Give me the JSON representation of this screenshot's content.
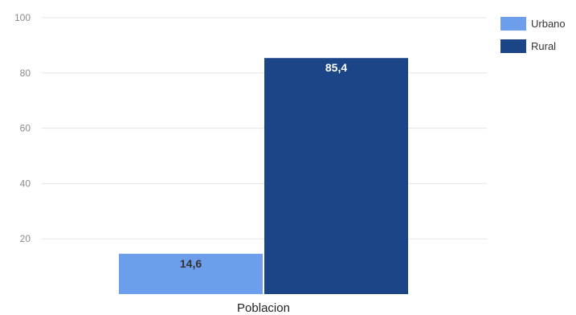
{
  "chart_data": {
    "type": "bar",
    "categories": [
      "Poblacion"
    ],
    "series": [
      {
        "name": "Urbano",
        "values": [
          14.6
        ],
        "label": "14,6",
        "color": "#6d9eeb",
        "label_color": "#333333"
      },
      {
        "name": "Rural",
        "values": [
          85.4
        ],
        "label": "85,4",
        "color": "#1c4587",
        "label_color": "#ffffff"
      }
    ],
    "yticks": [
      "20",
      "40",
      "60",
      "80",
      "100"
    ],
    "ylim": [
      0,
      100
    ],
    "grid": true,
    "legend_position": "right",
    "gridline_color": "#e5e5e5"
  }
}
